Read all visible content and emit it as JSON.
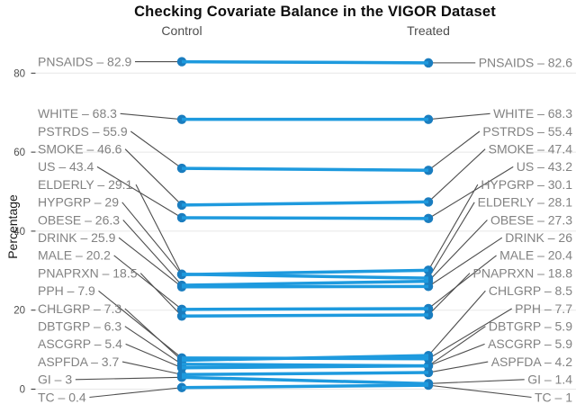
{
  "chart_data": {
    "type": "line",
    "variant": "slopegraph",
    "title": "Checking Covariate Balance in the VIGOR Dataset",
    "columns": [
      "Control",
      "Treated"
    ],
    "ylabel": "Percentage",
    "yticks": [
      0,
      20,
      40,
      60,
      80
    ],
    "ylim": [
      0,
      88
    ],
    "grid": true,
    "legend": false,
    "label_separator": "–",
    "series": [
      {
        "name": "PNSAIDS",
        "control": 82.9,
        "treated": 82.6
      },
      {
        "name": "WHITE",
        "control": 68.3,
        "treated": 68.3
      },
      {
        "name": "PSTRDS",
        "control": 55.9,
        "treated": 55.4
      },
      {
        "name": "SMOKE",
        "control": 46.6,
        "treated": 47.4
      },
      {
        "name": "US",
        "control": 43.4,
        "treated": 43.2
      },
      {
        "name": "ELDERLY",
        "control": 29.1,
        "treated": 28.1
      },
      {
        "name": "HYPGRP",
        "control": 29,
        "treated": 30.1
      },
      {
        "name": "OBESE",
        "control": 26.3,
        "treated": 27.3
      },
      {
        "name": "DRINK",
        "control": 25.9,
        "treated": 26
      },
      {
        "name": "MALE",
        "control": 20.2,
        "treated": 20.4
      },
      {
        "name": "PNAPRXN",
        "control": 18.5,
        "treated": 18.8
      },
      {
        "name": "PPH",
        "control": 7.9,
        "treated": 7.7
      },
      {
        "name": "CHLGRP",
        "control": 7.3,
        "treated": 8.5
      },
      {
        "name": "DBTGRP",
        "control": 6.3,
        "treated": 5.9
      },
      {
        "name": "ASCGRP",
        "control": 5.4,
        "treated": 5.9
      },
      {
        "name": "ASPFDA",
        "control": 3.7,
        "treated": 4.2
      },
      {
        "name": "GI",
        "control": 3,
        "treated": 1.4
      },
      {
        "name": "TC",
        "control": 0.4,
        "treated": 1
      }
    ],
    "colors": {
      "slope_line": "#1E9ADE",
      "point": "#1A7DBF",
      "covariate_label": "#828282",
      "leader_line": "#4D4D4D",
      "grid_line": "#E7E7E7",
      "tick_mark": "#333333",
      "axis_text": "#4D4D4D",
      "header_text": "#4D4D4D",
      "title_text": "#0D0D0D"
    }
  }
}
